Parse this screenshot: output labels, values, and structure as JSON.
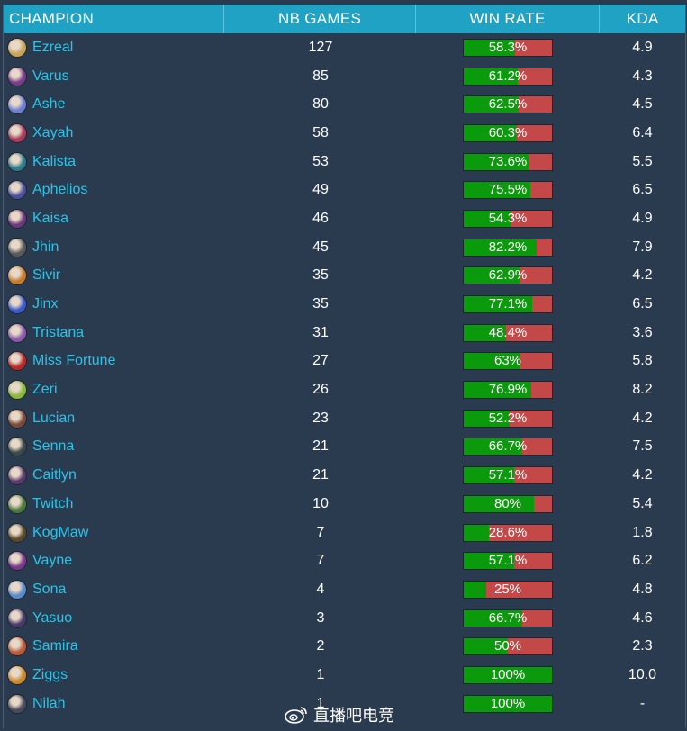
{
  "headers": {
    "champion": "CHAMPION",
    "games": "NB GAMES",
    "winrate": "WIN RATE",
    "kda": "KDA"
  },
  "colors": {
    "header": "#1fa2c4",
    "name": "#26c6ea",
    "win": "#0b9a0b",
    "loss": "#c44848",
    "bg": "#2b3b4f"
  },
  "rows": [
    {
      "name": "Ezreal",
      "games": "127",
      "winrate": "58.3%",
      "win": 58.3,
      "kda": "4.9",
      "avatar": "#c9a35a"
    },
    {
      "name": "Varus",
      "games": "85",
      "winrate": "61.2%",
      "win": 61.2,
      "kda": "4.3",
      "avatar": "#7a3c8c"
    },
    {
      "name": "Ashe",
      "games": "80",
      "winrate": "62.5%",
      "win": 62.5,
      "kda": "4.5",
      "avatar": "#6b7fd1"
    },
    {
      "name": "Xayah",
      "games": "58",
      "winrate": "60.3%",
      "win": 60.3,
      "kda": "6.4",
      "avatar": "#a83a5a"
    },
    {
      "name": "Kalista",
      "games": "53",
      "winrate": "73.6%",
      "win": 73.6,
      "kda": "5.5",
      "avatar": "#2d7a8a"
    },
    {
      "name": "Aphelios",
      "games": "49",
      "winrate": "75.5%",
      "win": 75.5,
      "kda": "6.5",
      "avatar": "#4a4f9a"
    },
    {
      "name": "Kaisa",
      "games": "46",
      "winrate": "54.3%",
      "win": 54.3,
      "kda": "4.9",
      "avatar": "#6a3a7a"
    },
    {
      "name": "Jhin",
      "games": "45",
      "winrate": "82.2%",
      "win": 82.2,
      "kda": "7.9",
      "avatar": "#5a5a5a"
    },
    {
      "name": "Sivir",
      "games": "35",
      "winrate": "62.9%",
      "win": 62.9,
      "kda": "4.2",
      "avatar": "#c67a2a"
    },
    {
      "name": "Jinx",
      "games": "35",
      "winrate": "77.1%",
      "win": 77.1,
      "kda": "6.5",
      "avatar": "#3a5acb"
    },
    {
      "name": "Tristana",
      "games": "31",
      "winrate": "48.4%",
      "win": 48.4,
      "kda": "3.6",
      "avatar": "#8a5aa8"
    },
    {
      "name": "Miss Fortune",
      "games": "27",
      "winrate": "63%",
      "win": 63,
      "kda": "5.8",
      "avatar": "#b82a2a"
    },
    {
      "name": "Zeri",
      "games": "26",
      "winrate": "76.9%",
      "win": 76.9,
      "kda": "8.2",
      "avatar": "#8ab83a"
    },
    {
      "name": "Lucian",
      "games": "23",
      "winrate": "52.2%",
      "win": 52.2,
      "kda": "4.2",
      "avatar": "#7a4a3a"
    },
    {
      "name": "Senna",
      "games": "21",
      "winrate": "66.7%",
      "win": 66.7,
      "kda": "7.5",
      "avatar": "#3a4a4a"
    },
    {
      "name": "Caitlyn",
      "games": "21",
      "winrate": "57.1%",
      "win": 57.1,
      "kda": "4.2",
      "avatar": "#5a3a6a"
    },
    {
      "name": "Twitch",
      "games": "10",
      "winrate": "80%",
      "win": 80,
      "kda": "5.4",
      "avatar": "#4a7a3a"
    },
    {
      "name": "KogMaw",
      "games": "7",
      "winrate": "28.6%",
      "win": 28.6,
      "kda": "1.8",
      "avatar": "#5a4a2a"
    },
    {
      "name": "Vayne",
      "games": "7",
      "winrate": "57.1%",
      "win": 57.1,
      "kda": "6.2",
      "avatar": "#7a3a8a"
    },
    {
      "name": "Sona",
      "games": "4",
      "winrate": "25%",
      "win": 25,
      "kda": "4.8",
      "avatar": "#5a8ac8"
    },
    {
      "name": "Yasuo",
      "games": "3",
      "winrate": "66.7%",
      "win": 66.7,
      "kda": "4.6",
      "avatar": "#4a3a6a"
    },
    {
      "name": "Samira",
      "games": "2",
      "winrate": "50%",
      "win": 50,
      "kda": "2.3",
      "avatar": "#b85a3a"
    },
    {
      "name": "Ziggs",
      "games": "1",
      "winrate": "100%",
      "win": 100,
      "kda": "10.0",
      "avatar": "#c8882a"
    },
    {
      "name": "Nilah",
      "games": "1",
      "winrate": "100%",
      "win": 100,
      "kda": "-",
      "avatar": "#4a4a5a"
    }
  ],
  "watermark": {
    "text": "直播吧电竞",
    "icon": "weibo-icon"
  }
}
